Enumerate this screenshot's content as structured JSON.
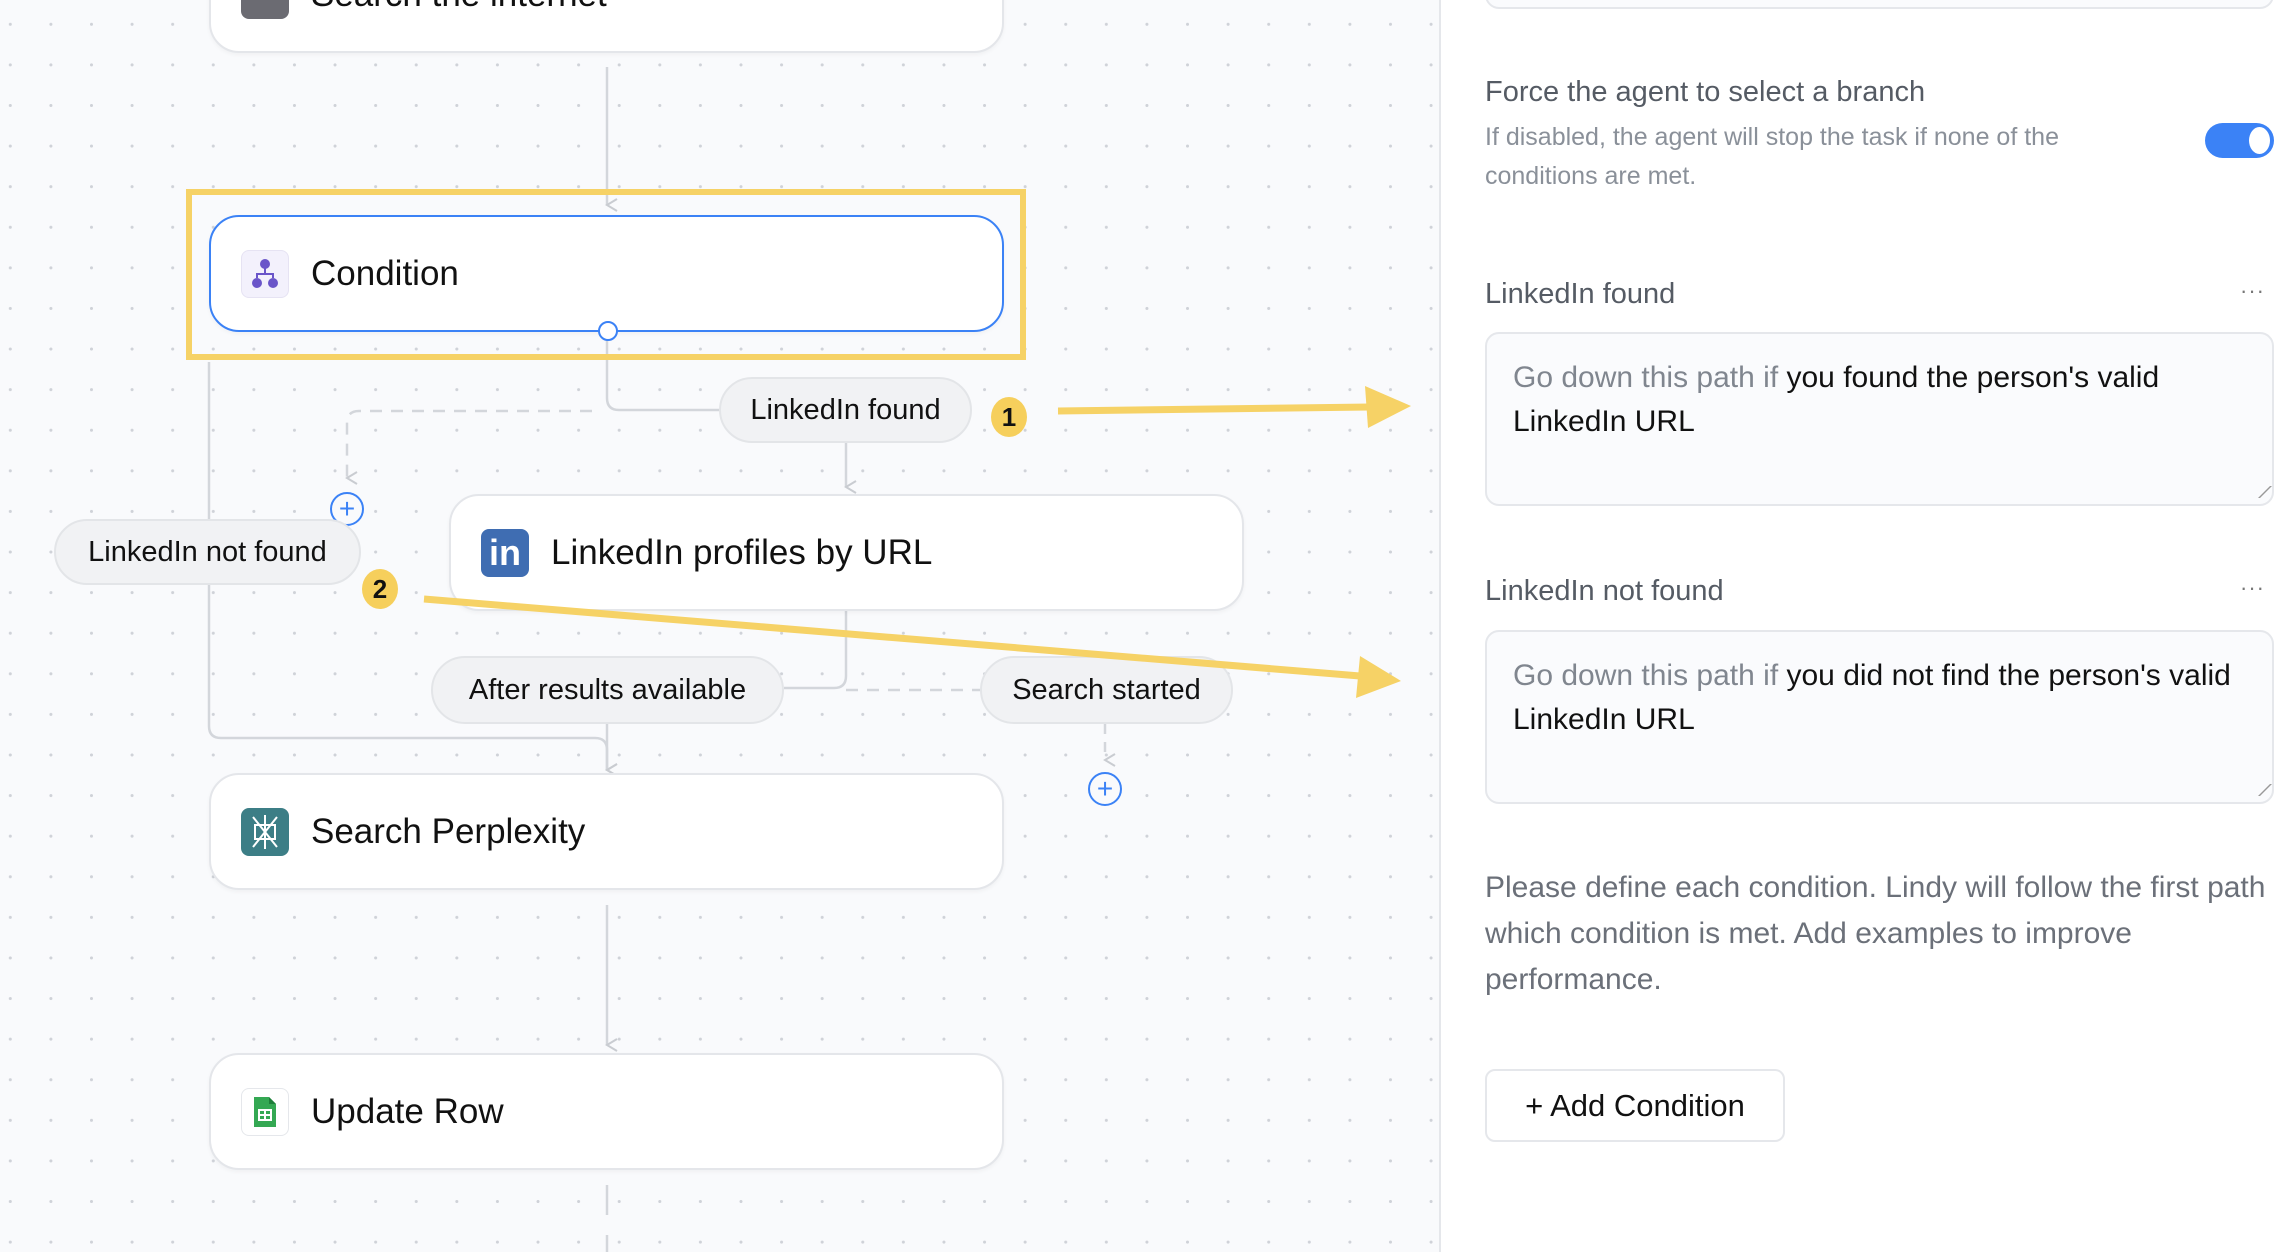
{
  "canvas": {
    "nodes": {
      "search_internet": {
        "title": "Search the internet",
        "icon": "search-globe-icon"
      },
      "condition": {
        "title": "Condition",
        "icon": "branch-icon",
        "selected": true
      },
      "linkedin": {
        "title": "LinkedIn profiles by URL",
        "icon": "linkedin-icon"
      },
      "perplexity": {
        "title": "Search Perplexity",
        "icon": "perplexity-icon"
      },
      "update_row": {
        "title": "Update Row",
        "icon": "google-sheets-icon"
      }
    },
    "branches": {
      "linkedin_found": "LinkedIn found",
      "linkedin_not_found": "LinkedIn not found",
      "after_results": "After results available",
      "search_started": "Search started"
    },
    "annotations": {
      "badge_1": "1",
      "badge_2": "2"
    }
  },
  "panel": {
    "force_branch": {
      "title": "Force the agent to select a branch",
      "description": "If disabled, the agent will stop the task if none of the conditions are met.",
      "enabled": true
    },
    "conditions": [
      {
        "label": "LinkedIn found",
        "prefix": "Go down this path if",
        "text": "you found the person's valid LinkedIn URL"
      },
      {
        "label": "LinkedIn not found",
        "prefix": "Go down this path if",
        "text": "you did not find the person's valid LinkedIn URL"
      }
    ],
    "more_label": "···",
    "help_text": "Please define each condition. Lindy will follow the first path which condition is met. Add examples to improve performance.",
    "add_condition_label": "+ Add Condition"
  },
  "colors": {
    "accent": "#3b82f6",
    "highlight": "#f6d266",
    "linkedin": "#3f6db2",
    "perplexity": "#3c7e86",
    "sheets": "#34a853",
    "condition": "#6a55c9"
  }
}
